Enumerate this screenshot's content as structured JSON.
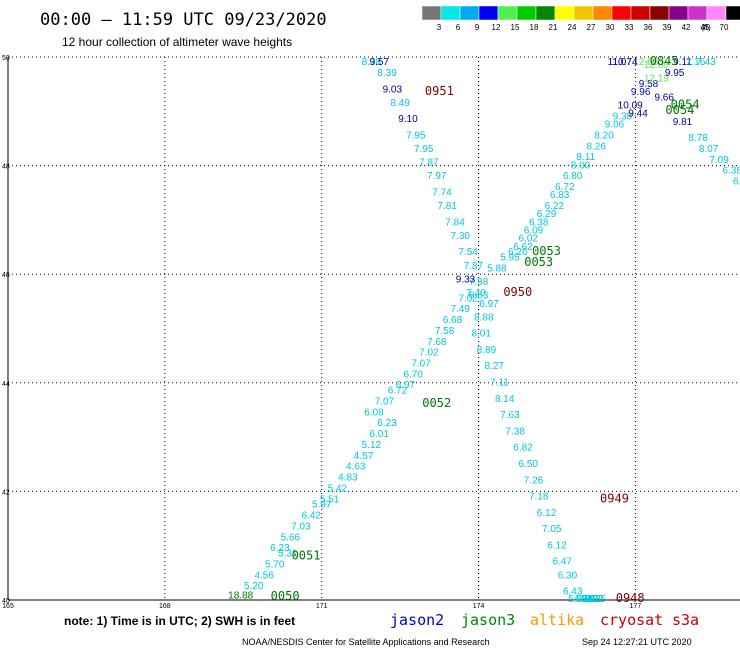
{
  "header": {
    "title": "00:00 – 11:59 UTC 09/23/2020",
    "subtitle": "12 hour collection of altimeter wave heights"
  },
  "legend": {
    "unit": "(ft)",
    "bins": [
      {
        "label": "3",
        "color": "#777777"
      },
      {
        "label": "6",
        "color": "#00e8e8"
      },
      {
        "label": "9",
        "color": "#00aaf0"
      },
      {
        "label": "12",
        "color": "#0000f0"
      },
      {
        "label": "15",
        "color": "#50f050"
      },
      {
        "label": "18",
        "color": "#00cc00"
      },
      {
        "label": "21",
        "color": "#008800"
      },
      {
        "label": "24",
        "color": "#ffff00"
      },
      {
        "label": "27",
        "color": "#f0c800"
      },
      {
        "label": "30",
        "color": "#ff8800"
      },
      {
        "label": "33",
        "color": "#ff0000"
      },
      {
        "label": "36",
        "color": "#cc0000"
      },
      {
        "label": "39",
        "color": "#880000"
      },
      {
        "label": "42",
        "color": "#880088"
      },
      {
        "label": "45",
        "color": "#cc33cc"
      },
      {
        "label": "70",
        "color": "#ff88ff"
      },
      {
        "label": "",
        "color": "#000000"
      }
    ]
  },
  "colors": {
    "cyan": "#00c8e0",
    "darkblue": "#000099",
    "lightgreen": "#66dd66",
    "green": "#007700",
    "darkred": "#800000",
    "orange": "#ff9900",
    "red": "#cc0000"
  },
  "chart_data": {
    "type": "scatter",
    "xlim": [
      165,
      179
    ],
    "ylim": [
      40,
      50
    ],
    "x_ticks": [
      165,
      168,
      171,
      174,
      177
    ],
    "y_ticks": [
      40,
      42,
      44,
      46,
      48,
      50
    ],
    "labels": [
      {
        "x": 169.45,
        "y": 40.03,
        "t": "18.88",
        "c": "green"
      },
      {
        "x": 169.7,
        "y": 40.2,
        "t": "5.20",
        "c": "cyan"
      },
      {
        "x": 169.9,
        "y": 40.4,
        "t": "4.56",
        "c": "cyan"
      },
      {
        "x": 170.1,
        "y": 40.6,
        "t": "5.70",
        "c": "cyan"
      },
      {
        "x": 170.35,
        "y": 40.8,
        "t": "5.31",
        "c": "cyan"
      },
      {
        "x": 170.2,
        "y": 40.9,
        "t": "6.23",
        "c": "cyan"
      },
      {
        "x": 170.4,
        "y": 41.1,
        "t": "5.66",
        "c": "cyan"
      },
      {
        "x": 170.6,
        "y": 41.3,
        "t": "7.03",
        "c": "cyan"
      },
      {
        "x": 170.8,
        "y": 41.5,
        "t": "6.42",
        "c": "cyan"
      },
      {
        "x": 171.0,
        "y": 41.7,
        "t": "5.97",
        "c": "cyan"
      },
      {
        "x": 171.15,
        "y": 41.8,
        "t": "5.51",
        "c": "cyan"
      },
      {
        "x": 171.3,
        "y": 42.0,
        "t": "5.42",
        "c": "cyan"
      },
      {
        "x": 171.5,
        "y": 42.2,
        "t": "4.83",
        "c": "cyan"
      },
      {
        "x": 171.65,
        "y": 42.4,
        "t": "4.63",
        "c": "cyan"
      },
      {
        "x": 171.8,
        "y": 42.6,
        "t": "4.57",
        "c": "cyan"
      },
      {
        "x": 171.95,
        "y": 42.8,
        "t": "5.12",
        "c": "cyan"
      },
      {
        "x": 172.1,
        "y": 43.0,
        "t": "6.01",
        "c": "cyan"
      },
      {
        "x": 172.25,
        "y": 43.2,
        "t": "6.23",
        "c": "cyan"
      },
      {
        "x": 172.0,
        "y": 43.4,
        "t": "6.08",
        "c": "cyan"
      },
      {
        "x": 172.2,
        "y": 43.6,
        "t": "7.07",
        "c": "cyan"
      },
      {
        "x": 172.45,
        "y": 43.8,
        "t": "6.72",
        "c": "cyan"
      },
      {
        "x": 172.6,
        "y": 43.9,
        "t": "6.97",
        "c": "cyan"
      },
      {
        "x": 172.75,
        "y": 44.1,
        "t": "6.70",
        "c": "cyan"
      },
      {
        "x": 172.9,
        "y": 44.3,
        "t": "7.07",
        "c": "cyan"
      },
      {
        "x": 173.05,
        "y": 44.5,
        "t": "7.02",
        "c": "cyan"
      },
      {
        "x": 173.2,
        "y": 44.7,
        "t": "7.68",
        "c": "cyan"
      },
      {
        "x": 173.35,
        "y": 44.9,
        "t": "7.58",
        "c": "cyan"
      },
      {
        "x": 173.5,
        "y": 45.1,
        "t": "6.68",
        "c": "cyan"
      },
      {
        "x": 173.65,
        "y": 45.3,
        "t": "7.49",
        "c": "cyan"
      },
      {
        "x": 173.8,
        "y": 45.5,
        "t": "7.02",
        "c": "cyan"
      },
      {
        "x": 173.95,
        "y": 45.6,
        "t": "7.40",
        "c": "cyan"
      },
      {
        "x": 174.0,
        "y": 45.8,
        "t": "7.88",
        "c": "cyan"
      },
      {
        "x": 174.35,
        "y": 46.05,
        "t": "5.88",
        "c": "cyan"
      },
      {
        "x": 174.6,
        "y": 46.25,
        "t": "5.95",
        "c": "cyan"
      },
      {
        "x": 174.75,
        "y": 46.35,
        "t": "6.26",
        "c": "cyan"
      },
      {
        "x": 174.85,
        "y": 46.45,
        "t": "6.62",
        "c": "cyan"
      },
      {
        "x": 174.95,
        "y": 46.6,
        "t": "6.02",
        "c": "cyan"
      },
      {
        "x": 175.05,
        "y": 46.75,
        "t": "6.09",
        "c": "cyan"
      },
      {
        "x": 175.15,
        "y": 46.9,
        "t": "6.38",
        "c": "cyan"
      },
      {
        "x": 175.3,
        "y": 47.05,
        "t": "6.29",
        "c": "cyan"
      },
      {
        "x": 175.45,
        "y": 47.2,
        "t": "6.22",
        "c": "cyan"
      },
      {
        "x": 175.55,
        "y": 47.4,
        "t": "6.83",
        "c": "cyan"
      },
      {
        "x": 175.65,
        "y": 47.55,
        "t": "6.72",
        "c": "cyan"
      },
      {
        "x": 175.8,
        "y": 47.75,
        "t": "6.80",
        "c": "cyan"
      },
      {
        "x": 175.95,
        "y": 47.95,
        "t": "8.00",
        "c": "cyan"
      },
      {
        "x": 176.05,
        "y": 48.1,
        "t": "8.11",
        "c": "cyan"
      },
      {
        "x": 176.25,
        "y": 48.3,
        "t": "8.26",
        "c": "cyan"
      },
      {
        "x": 176.4,
        "y": 48.5,
        "t": "8.20",
        "c": "cyan"
      },
      {
        "x": 176.6,
        "y": 48.7,
        "t": "9.06",
        "c": "cyan"
      },
      {
        "x": 176.75,
        "y": 48.85,
        "t": "9.38",
        "c": "cyan"
      },
      {
        "x": 176.9,
        "y": 49.05,
        "t": "10.09",
        "c": "darkblue"
      },
      {
        "x": 177.1,
        "y": 49.3,
        "t": "9.96",
        "c": "darkblue"
      },
      {
        "x": 177.25,
        "y": 49.45,
        "t": "9.58",
        "c": "darkblue"
      },
      {
        "x": 177.4,
        "y": 49.55,
        "t": "12.19",
        "c": "lightgreen"
      },
      {
        "x": 177.4,
        "y": 49.8,
        "t": "12.88",
        "c": "lightgreen"
      },
      {
        "x": 177.2,
        "y": 50.05,
        "t": "12.68",
        "c": "lightgreen"
      },
      {
        "x": 176.7,
        "y": 50.4,
        "t": "11.07",
        "c": "darkblue"
      },
      {
        "x": 176.8,
        "y": 50.2,
        "t": "10.74",
        "c": "darkblue"
      },
      {
        "x": 177.9,
        "y": 49.95,
        "t": "9.11",
        "c": "darkblue"
      },
      {
        "x": 177.75,
        "y": 49.65,
        "t": "9.95",
        "c": "darkblue"
      },
      {
        "x": 178.15,
        "y": 50.2,
        "t": "7.16",
        "c": "cyan"
      },
      {
        "x": 178.35,
        "y": 50.4,
        "t": "7.43",
        "c": "cyan"
      },
      {
        "x": 177.55,
        "y": 49.2,
        "t": "9.66",
        "c": "darkblue"
      },
      {
        "x": 177.9,
        "y": 48.75,
        "t": "9.81",
        "c": "darkblue"
      },
      {
        "x": 178.2,
        "y": 48.45,
        "t": "8.78",
        "c": "cyan"
      },
      {
        "x": 178.4,
        "y": 48.25,
        "t": "8.07",
        "c": "cyan"
      },
      {
        "x": 178.6,
        "y": 48.05,
        "t": "7.09",
        "c": "cyan"
      },
      {
        "x": 178.85,
        "y": 47.85,
        "t": "6.38",
        "c": "cyan"
      },
      {
        "x": 179.0,
        "y": 47.65,
        "t": "6.2",
        "c": "cyan"
      },
      {
        "x": 179.1,
        "y": 47.45,
        "t": "6",
        "c": "cyan"
      },
      {
        "x": 177.05,
        "y": 48.9,
        "t": "9.44",
        "c": "darkblue"
      },
      {
        "x": 171.95,
        "y": 50.25,
        "t": "8.38",
        "c": "cyan"
      },
      {
        "x": 172.1,
        "y": 49.95,
        "t": "9.57",
        "c": "darkblue"
      },
      {
        "x": 172.25,
        "y": 49.65,
        "t": "8.39",
        "c": "cyan"
      },
      {
        "x": 172.35,
        "y": 49.35,
        "t": "9.03",
        "c": "darkblue"
      },
      {
        "x": 172.5,
        "y": 49.1,
        "t": "8.49",
        "c": "cyan"
      },
      {
        "x": 172.65,
        "y": 48.8,
        "t": "9.10",
        "c": "darkblue"
      },
      {
        "x": 172.8,
        "y": 48.5,
        "t": "7.95",
        "c": "cyan"
      },
      {
        "x": 172.95,
        "y": 48.25,
        "t": "7.95",
        "c": "cyan"
      },
      {
        "x": 173.05,
        "y": 48.0,
        "t": "7.87",
        "c": "cyan"
      },
      {
        "x": 173.2,
        "y": 47.75,
        "t": "7.97",
        "c": "cyan"
      },
      {
        "x": 173.3,
        "y": 47.45,
        "t": "7.74",
        "c": "cyan"
      },
      {
        "x": 173.4,
        "y": 47.2,
        "t": "7.81",
        "c": "cyan"
      },
      {
        "x": 173.55,
        "y": 46.9,
        "t": "7.84",
        "c": "cyan"
      },
      {
        "x": 173.65,
        "y": 46.65,
        "t": "7.30",
        "c": "cyan"
      },
      {
        "x": 173.8,
        "y": 46.35,
        "t": "7.54",
        "c": "cyan"
      },
      {
        "x": 173.9,
        "y": 46.1,
        "t": "7.87",
        "c": "cyan"
      },
      {
        "x": 173.75,
        "y": 45.85,
        "t": "9.33",
        "c": "darkblue"
      },
      {
        "x": 174.0,
        "y": 45.55,
        "t": "8.63",
        "c": "cyan"
      },
      {
        "x": 174.2,
        "y": 45.4,
        "t": "6.97",
        "c": "cyan"
      },
      {
        "x": 174.1,
        "y": 45.15,
        "t": "8.88",
        "c": "cyan"
      },
      {
        "x": 174.05,
        "y": 44.85,
        "t": "8.01",
        "c": "cyan"
      },
      {
        "x": 174.15,
        "y": 44.55,
        "t": "8.89",
        "c": "cyan"
      },
      {
        "x": 174.3,
        "y": 44.25,
        "t": "8.27",
        "c": "cyan"
      },
      {
        "x": 174.4,
        "y": 43.95,
        "t": "7.11",
        "c": "cyan"
      },
      {
        "x": 174.5,
        "y": 43.65,
        "t": "8.14",
        "c": "cyan"
      },
      {
        "x": 174.6,
        "y": 43.35,
        "t": "7.63",
        "c": "cyan"
      },
      {
        "x": 174.7,
        "y": 43.05,
        "t": "7.38",
        "c": "cyan"
      },
      {
        "x": 174.85,
        "y": 42.75,
        "t": "6.82",
        "c": "cyan"
      },
      {
        "x": 174.95,
        "y": 42.45,
        "t": "6.50",
        "c": "cyan"
      },
      {
        "x": 175.05,
        "y": 42.15,
        "t": "7.26",
        "c": "cyan"
      },
      {
        "x": 175.15,
        "y": 41.85,
        "t": "7.18",
        "c": "cyan"
      },
      {
        "x": 175.3,
        "y": 41.55,
        "t": "6.12",
        "c": "cyan"
      },
      {
        "x": 175.4,
        "y": 41.25,
        "t": "7.05",
        "c": "cyan"
      },
      {
        "x": 175.5,
        "y": 40.95,
        "t": "6.12",
        "c": "cyan"
      },
      {
        "x": 175.6,
        "y": 40.65,
        "t": "6.47",
        "c": "cyan"
      },
      {
        "x": 175.7,
        "y": 40.4,
        "t": "6.30",
        "c": "cyan"
      },
      {
        "x": 175.8,
        "y": 40.1,
        "t": "6.43",
        "c": "cyan"
      },
      {
        "x": 175.9,
        "y": 39.85,
        "t": "5.62",
        "c": "cyan"
      },
      {
        "x": 176.0,
        "y": 39.55,
        "t": "4.93",
        "c": "cyan"
      },
      {
        "x": 176.05,
        "y": 39.25,
        "t": "5.91",
        "c": "cyan"
      },
      {
        "x": 176.1,
        "y": 38.95,
        "t": "4.10",
        "c": "cyan"
      },
      {
        "x": 176.15,
        "y": 38.65,
        "t": "3.93",
        "c": "cyan"
      },
      {
        "x": 176.2,
        "y": 38.35,
        "t": "3.92",
        "c": "cyan"
      },
      {
        "x": 176.25,
        "y": 38.05,
        "t": "4.25",
        "c": "cyan"
      }
    ],
    "time_stamps": [
      {
        "x": 170.3,
        "y": 40.0,
        "t": "0050",
        "c": "green"
      },
      {
        "x": 170.7,
        "y": 40.75,
        "t": "0051",
        "c": "green"
      },
      {
        "x": 173.2,
        "y": 43.55,
        "t": "0052",
        "c": "green"
      },
      {
        "x": 175.15,
        "y": 46.15,
        "t": "0053",
        "c": "green"
      },
      {
        "x": 175.3,
        "y": 46.35,
        "t": "0053",
        "c": "green"
      },
      {
        "x": 177.95,
        "y": 49.05,
        "t": "0054",
        "c": "green"
      },
      {
        "x": 177.85,
        "y": 48.95,
        "t": "0054",
        "c": "green"
      },
      {
        "x": 177.55,
        "y": 50.35,
        "t": "0845",
        "c": "green"
      },
      {
        "x": 174.75,
        "y": 45.6,
        "t": "0950",
        "c": "darkred"
      },
      {
        "x": 173.25,
        "y": 49.3,
        "t": "0951",
        "c": "darkred"
      },
      {
        "x": 176.6,
        "y": 41.8,
        "t": "0949",
        "c": "darkred"
      },
      {
        "x": 176.9,
        "y": 38.05,
        "t": "0948",
        "c": "darkred"
      }
    ]
  },
  "note": "note: 1) Time is in UTC; 2) SWH is in feet",
  "satellites": [
    {
      "name": "jason2",
      "color": "#0000cc"
    },
    {
      "name": "jason3",
      "color": "#008800"
    },
    {
      "name": "altika",
      "color": "#ff9900"
    },
    {
      "name": "cryosat",
      "color": "#cc0000"
    },
    {
      "name": "s3a",
      "color": "#cc0000"
    }
  ],
  "footer": {
    "agency": "NOAA/NESDIS Center for Satellite Applications and Research",
    "timestamp": "Sep 24 12:27:21 UTC 2020"
  }
}
